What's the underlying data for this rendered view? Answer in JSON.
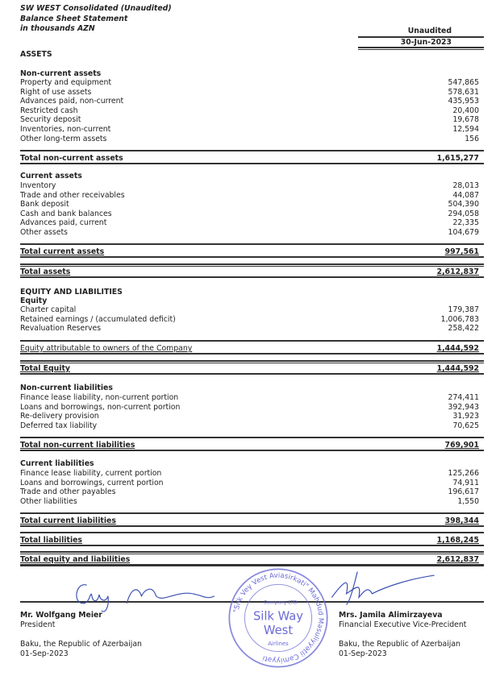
{
  "header": {
    "company": "SW WEST Consolidated (Unaudited)",
    "title": "Balance Sheet Statement",
    "units": "in thousands AZN",
    "column_status": "Unaudited",
    "column_date": "30-Jun-2023"
  },
  "assets": {
    "heading": "ASSETS",
    "non_current": {
      "heading": "Non-current assets",
      "items": [
        {
          "label": "Property and equipment",
          "value": "547,865"
        },
        {
          "label": "Right of use assets",
          "value": "578,631"
        },
        {
          "label": "Advances paid, non-current",
          "value": "435,953"
        },
        {
          "label": "Restricted cash",
          "value": "20,400"
        },
        {
          "label": "Security deposit",
          "value": "19,678"
        },
        {
          "label": "Inventories, non-current",
          "value": "12,594"
        },
        {
          "label": "Other long-term assets",
          "value": "156"
        }
      ],
      "total": {
        "label": "Total non-current assets",
        "value": "1,615,277"
      }
    },
    "current": {
      "heading": "Current assets",
      "items": [
        {
          "label": "Inventory",
          "value": "28,013"
        },
        {
          "label": "Trade and other receivables",
          "value": "44,087"
        },
        {
          "label": "Bank deposit",
          "value": "504,390"
        },
        {
          "label": "Cash and bank balances",
          "value": "294,058"
        },
        {
          "label": "Advances paid, current",
          "value": "22,335"
        },
        {
          "label": "Other assets",
          "value": "104,679"
        }
      ],
      "total": {
        "label": "Total current assets",
        "value": "997,561"
      }
    },
    "total": {
      "label": "Total assets",
      "value": "2,612,837"
    }
  },
  "equity_liabilities": {
    "heading": "EQUITY AND LIABILITIES",
    "equity": {
      "heading": "Equity",
      "items": [
        {
          "label": "Charter capital",
          "value": "179,387"
        },
        {
          "label": "Retained earnings / (accumulated deficit)",
          "value": "1,006,783"
        },
        {
          "label": "Revaluation Reserves",
          "value": "258,422"
        }
      ],
      "attributable": {
        "label": "Equity attributable to owners of the Company",
        "value": "1,444,592"
      },
      "total": {
        "label": "Total Equity",
        "value": "1,444,592"
      }
    },
    "non_current_liabilities": {
      "heading": "Non-current liabilities",
      "items": [
        {
          "label": "Finance lease liability, non-current portion",
          "value": "274,411"
        },
        {
          "label": "Loans and borrowings, non-current portion",
          "value": "392,943"
        },
        {
          "label": "Re-delivery provision",
          "value": "31,923"
        },
        {
          "label": "Deferred tax liability",
          "value": "70,625"
        }
      ],
      "total": {
        "label": "Total non-current liabilities",
        "value": "769,901"
      }
    },
    "current_liabilities": {
      "heading": "Current liabilities",
      "items": [
        {
          "label": "Finance lease liability, current portion",
          "value": "125,266"
        },
        {
          "label": "Loans and borrowings, current portion",
          "value": "74,911"
        },
        {
          "label": "Trade and other payables",
          "value": "196,617"
        },
        {
          "label": "Other liabilities",
          "value": "1,550"
        }
      ],
      "total": {
        "label": "Total current liabilities",
        "value": "398,344"
      }
    },
    "total_liabilities": {
      "label": "Total liabilities",
      "value": "1,168,245"
    },
    "total": {
      "label": "Total equity and liabilities",
      "value": "2,612,837"
    }
  },
  "signatories": [
    {
      "name": "Mr. Wolfgang Meier",
      "title": "President",
      "place": "Baku, the Republic of Azerbaijan",
      "date": "01-Sep-2023"
    },
    {
      "name": "Mrs. Jamila Alimirzayeva",
      "title": "Financial Executive Vice-Precident",
      "place": "Baku, the Republic of Azerbaijan",
      "date": "01-Sep-2023"
    }
  ],
  "stamp": {
    "ring_text": "\"Silk Vey Vest Aviasirkəti\" Məhdud Məsuliyyətli Cəmiyyəti",
    "center": [
      "Company LTD",
      "Silk Way",
      "West",
      "Airlines"
    ],
    "color": "#6a6ad6"
  },
  "colors": {
    "ink": "#222222",
    "signature": "#3a4fb0"
  }
}
